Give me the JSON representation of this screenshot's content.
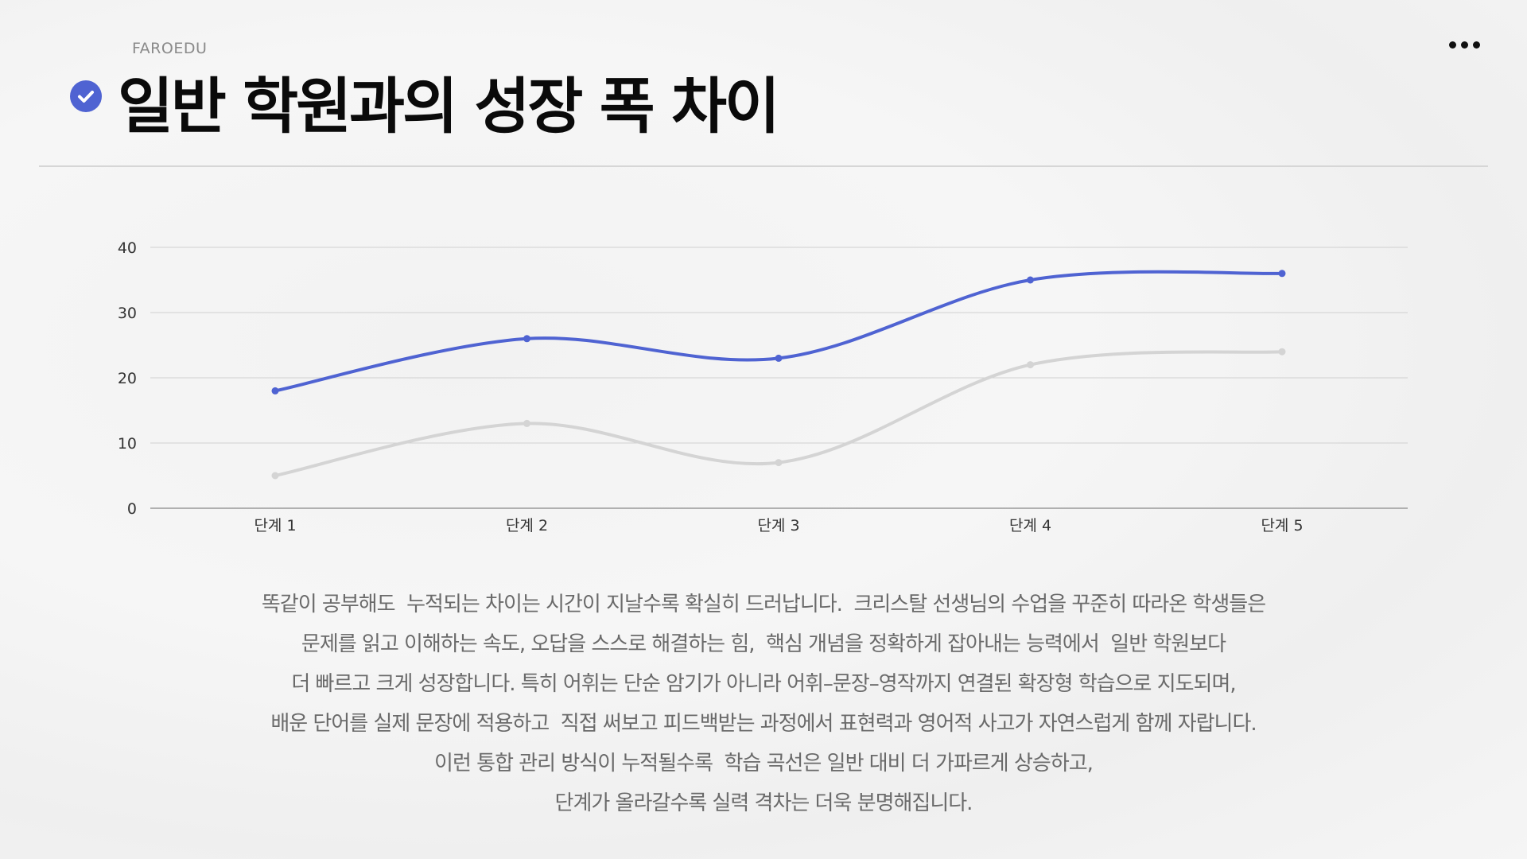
{
  "header": {
    "brand": "FAROEDU",
    "title": "일반 학원과의 성장 폭 차이",
    "check_icon": "check-circle-icon",
    "menu_icon": "more-horizontal-icon"
  },
  "colors": {
    "accent": "#4f63d2",
    "series_gray": "#d4d4d4"
  },
  "chart_data": {
    "type": "line",
    "smooth": true,
    "categories": [
      "단계 1",
      "단계 2",
      "단계 3",
      "단계 4",
      "단계 5"
    ],
    "series": [
      {
        "values": [
          18,
          26,
          23,
          35,
          36
        ],
        "color": "#4f63d2"
      },
      {
        "values": [
          5,
          13,
          7,
          22,
          24
        ],
        "color": "#d4d4d4"
      }
    ],
    "ylim": [
      0,
      40
    ],
    "yticks": [
      0,
      10,
      20,
      30,
      40
    ],
    "grid": true,
    "legend": "none"
  },
  "description": {
    "lines": [
      "똑같이 공부해도  누적되는 차이는 시간이 지날수록 확실히 드러납니다.  크리스탈 선생님의 수업을 꾸준히 따라온 학생들은",
      "문제를 읽고 이해하는 속도, 오답을 스스로 해결하는 힘,  핵심 개념을 정확하게 잡아내는 능력에서  일반 학원보다",
      "더 빠르고 크게 성장합니다. 특히 어휘는 단순 암기가 아니라 어휘–문장–영작까지 연결된 확장형 학습으로 지도되며,",
      "배운 단어를 실제 문장에 적용하고  직접 써보고 피드백받는 과정에서 표현력과 영어적 사고가 자연스럽게 함께 자랍니다.",
      "이런 통합 관리 방식이 누적될수록  학습 곡선은 일반 대비 더 가파르게 상승하고,",
      "단계가 올라갈수록 실력 격차는 더욱 분명해집니다."
    ]
  }
}
